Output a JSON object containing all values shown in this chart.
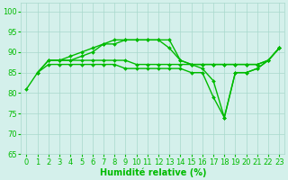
{
  "series": [
    {
      "x": [
        0,
        1,
        2,
        3,
        4,
        5,
        6,
        7,
        8,
        9,
        10,
        11,
        12,
        13,
        14,
        15,
        16,
        17,
        18,
        19,
        20,
        21,
        22,
        23
      ],
      "y": [
        81,
        85,
        88,
        88,
        89,
        90,
        91,
        92,
        93,
        93,
        93,
        93,
        93,
        91,
        88,
        87,
        86,
        83,
        74,
        85,
        85,
        86,
        88,
        91
      ]
    },
    {
      "x": [
        2,
        3,
        4,
        5,
        6,
        7,
        8,
        9,
        10,
        11,
        12,
        13,
        14,
        15,
        16,
        17,
        18,
        19,
        20,
        21,
        22,
        23
      ],
      "y": [
        88,
        88,
        88,
        89,
        90,
        92,
        92,
        93,
        93,
        93,
        93,
        93,
        88,
        87,
        87,
        87,
        87,
        87,
        87,
        87,
        88,
        91
      ]
    },
    {
      "x": [
        1,
        2,
        3,
        4,
        5,
        6,
        7,
        8,
        9,
        10,
        11,
        12,
        13,
        14,
        15,
        16,
        17,
        18,
        19,
        20,
        21,
        22,
        23
      ],
      "y": [
        85,
        88,
        88,
        88,
        88,
        88,
        88,
        88,
        88,
        87,
        87,
        87,
        87,
        87,
        87,
        87,
        87,
        87,
        87,
        87,
        87,
        88,
        91
      ]
    },
    {
      "x": [
        1,
        2,
        3,
        4,
        5,
        6,
        7,
        8,
        9,
        10,
        11,
        12,
        13,
        14,
        15,
        16,
        17,
        18,
        19,
        20,
        21,
        22,
        23
      ],
      "y": [
        85,
        87,
        87,
        87,
        87,
        87,
        87,
        87,
        86,
        86,
        86,
        86,
        86,
        86,
        85,
        85,
        79,
        74,
        85,
        85,
        86,
        88,
        91
      ]
    }
  ],
  "color": "#00bb00",
  "bg_color": "#d4f0eb",
  "grid_color": "#a8d8cc",
  "xlabel": "Humidité relative (%)",
  "xlim": [
    -0.5,
    23.5
  ],
  "ylim": [
    65,
    102
  ],
  "yticks": [
    65,
    70,
    75,
    80,
    85,
    90,
    95,
    100
  ],
  "xticks": [
    0,
    1,
    2,
    3,
    4,
    5,
    6,
    7,
    8,
    9,
    10,
    11,
    12,
    13,
    14,
    15,
    16,
    17,
    18,
    19,
    20,
    21,
    22,
    23
  ],
  "xlabel_fontsize": 7,
  "tick_fontsize": 6,
  "line_width": 1.0
}
